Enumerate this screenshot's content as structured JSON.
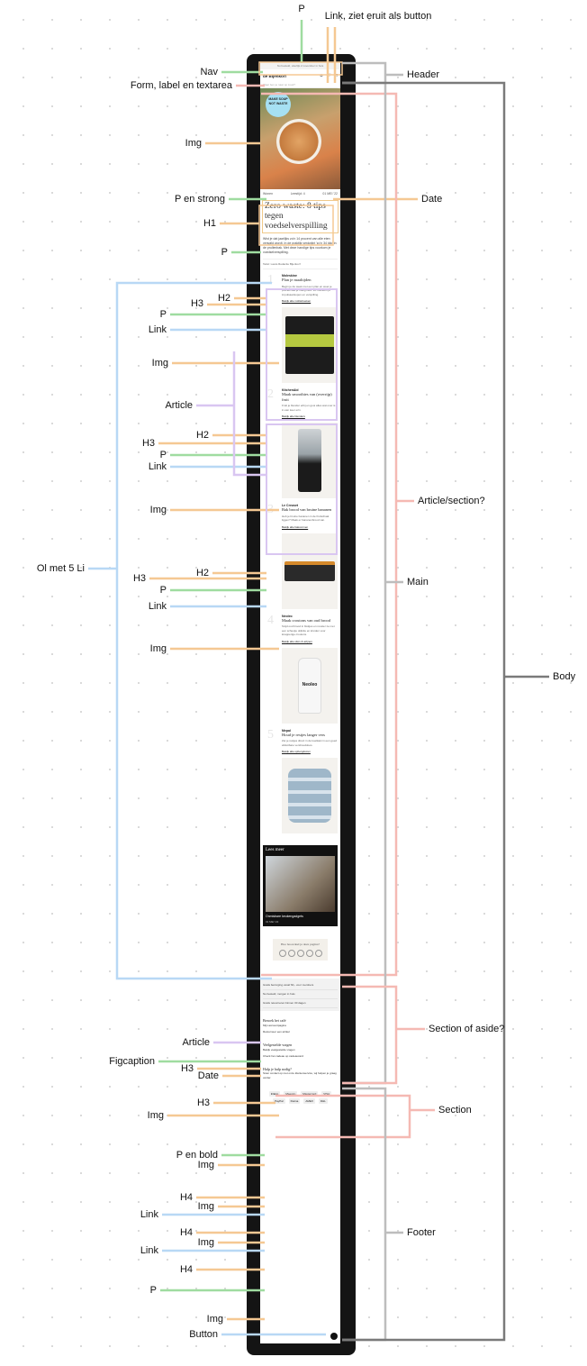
{
  "annotations": {
    "top_p": "P",
    "link_button": "Link, ziet eruit als button",
    "nav": "Nav",
    "form": "Form, label en textarea",
    "header": "Header",
    "img_hero": "Img",
    "p_en_strong": "P en strong",
    "date": "Date",
    "h1": "H1",
    "p_intro": "P",
    "h2_1": "H2",
    "h3_1": "H3",
    "p_1": "P",
    "link_1": "Link",
    "img_1": "Img",
    "article": "Article",
    "h2_2": "H2",
    "h3_2": "H3",
    "p_2": "P",
    "link_2": "Link",
    "article_section": "Article/section?",
    "img_2": "Img",
    "ol": "Ol met 5 Li",
    "h2_3": "H2",
    "main": "Main",
    "h3_3": "H3",
    "p_3": "P",
    "link_3": "Link",
    "img_3": "Img",
    "body": "Body",
    "section_aside": "Section of aside?",
    "article_2": "Article",
    "figcaption": "Figcaption",
    "h3_4": "H3",
    "date_2": "Date",
    "h3_5": "H3",
    "section": "Section",
    "img_4": "Img",
    "p_bold": "P en bold",
    "img_5": "Img",
    "h4_1": "H4",
    "img_6": "Img",
    "link_4": "Link",
    "h4_2": "H4",
    "footer": "Footer",
    "img_7": "Img",
    "link_5": "Link",
    "h4_3": "H4",
    "p_4": "P",
    "img_8": "Img",
    "button": "Button"
  },
  "colors": {
    "green": "#9fdca0",
    "orange": "#f5c893",
    "blue": "#b8d8f5",
    "purple": "#d9c6f1",
    "pink": "#f5b9b3",
    "gray": "#bdbdbd",
    "darkgray": "#7a7a7a"
  },
  "mock": {
    "topbar": "Nu besteld, uiterlijk 2 november in huis",
    "logo": "de Bijenkorf",
    "search_placeholder": "Waar ben je naar op zoek?",
    "hero_badge": "MAKE SOUP NOT WASTE",
    "category": "Wonen",
    "read_time": "Leestijd: 4",
    "date": "01 MEI '22",
    "title": "Zero waste: 8 tips tegen voedselverspilling",
    "intro": "Wist je dat jaarlijks zo'n 14 procent van alle eten verspild wordt. In de praktijk verdwijnt 'zo'n 34 kilo' in de prullenbak. Met deze handige tips voorkom je voedselverspilling.",
    "author": "Tekst: Laura Redactie Bijenkorf",
    "items": [
      {
        "num": "1",
        "brand": "Moleskine",
        "title": "Plan je maaltijden",
        "text": "Begin je de week met een plan en weet je precies wat je nodig hebt. Zo voorkom je impulsaankopen en verspilling.",
        "link": "Bekijk alle notitieboeken"
      },
      {
        "num": "2",
        "brand": "KitchenAid",
        "title": "Maak smoothies van (overrijp) fruit",
        "text": "Fruit je blender erbij en gooi alles wat over is in één keer erin.",
        "link": "Bekijk alle blenders"
      },
      {
        "num": "3",
        "brand": "Le Creuset",
        "title": "Bak brood van bruine bananen",
        "text": "Heb je bruine bananen in de fruitschaal liggen? Maak er bananenbrood van.",
        "link": "Bekijk alle bakvormen"
      },
      {
        "num": "4",
        "brand": "Neoleo",
        "title": "Maak croutons van oud brood",
        "text": "Snijd oud brood in blokjes en rooster ze met een scheutje olijfolie en kruiden voor knapperige croutons.",
        "link": "Bekijk alle oliën & azijnen"
      },
      {
        "num": "5",
        "brand": "Mepal",
        "title": "Houd je restjes langer vers",
        "text": "Zet je restjes direct in de koelkast in een goed afsluitbare vershouddoos.",
        "link": "Bekijk alle opbergdozen"
      }
    ],
    "lees_meer": "Lees meer",
    "lees_title": "Onmisbare keukengadgets",
    "lees_date": "01 MEI '22",
    "rate_title": "Hoe beoordeel je deze pagina?",
    "usps": [
      "Gratis bezorging vanaf 60,- voor members",
      "Nu besteld, morgen in huis",
      "Gratis retourneren binnen 30 dagen"
    ],
    "foot_h1": "Bezoek het café",
    "foot_l1": [
      "Mijn accountpagina",
      "Retourneer een artikel"
    ],
    "foot_h2": "Veelgestelde vragen",
    "foot_l2": [
      "Bekijk veelgestelde vragen",
      "Check het cadeau op cadeaucard"
    ],
    "foot_h3": "Hulp je hulp nodig?",
    "foot_p": "Stuur contact op met onze klantenservice, wij helpen je graag verder.",
    "payments": [
      "iDEAL",
      "Maestro",
      "Mastercard",
      "VISA",
      "PayPal",
      "Klarna",
      "AMEX",
      "DHL"
    ]
  }
}
